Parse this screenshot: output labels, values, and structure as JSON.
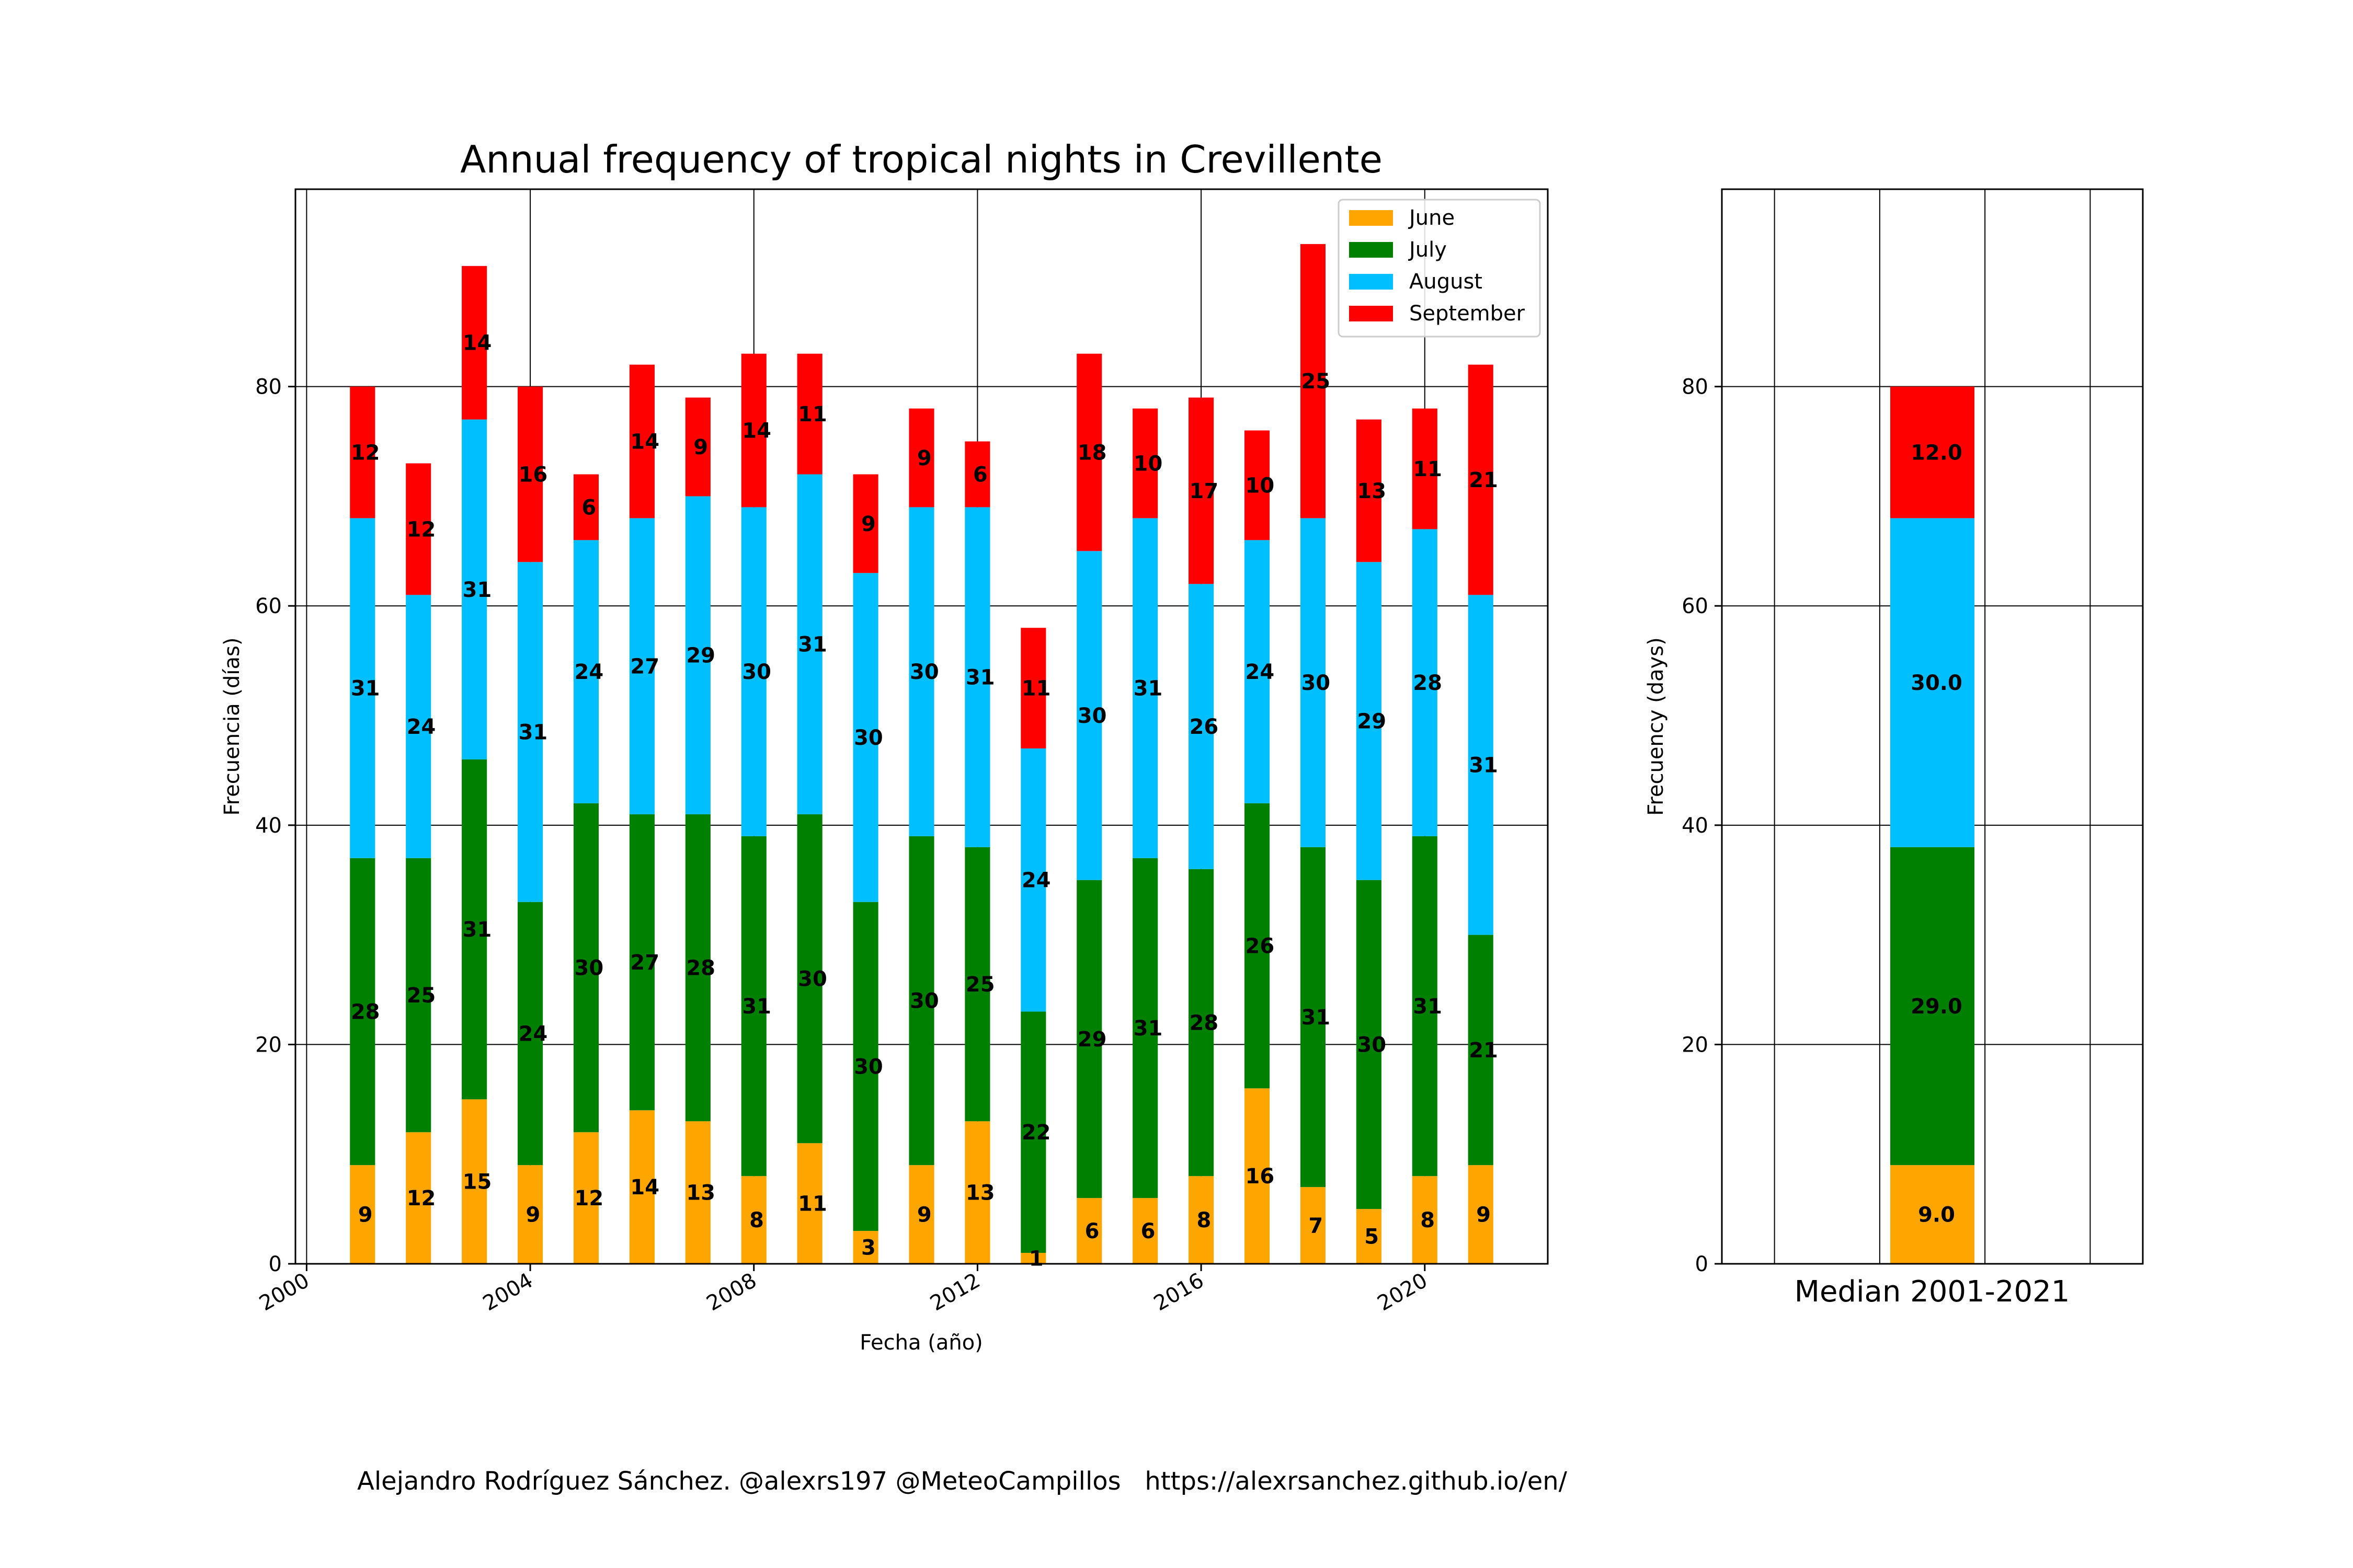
{
  "colors": {
    "June": "#ffa500",
    "July": "#008000",
    "August": "#00bfff",
    "September": "#ff0000",
    "axes": "#000000",
    "grid": "#000000"
  },
  "chart_data": [
    {
      "type": "bar",
      "stacked": true,
      "title": "Annual frequency of tropical nights in Crevillente",
      "xlabel": "Fecha (año)",
      "ylabel": "Frecuencia (días)",
      "x": [
        2001,
        2002,
        2003,
        2004,
        2005,
        2006,
        2007,
        2008,
        2009,
        2010,
        2011,
        2012,
        2013,
        2014,
        2015,
        2016,
        2017,
        2018,
        2019,
        2020,
        2021
      ],
      "xtick_values": [
        2000,
        2004,
        2008,
        2012,
        2016,
        2020
      ],
      "xtick_labels": [
        "2000",
        "2004",
        "2008",
        "2012",
        "2016",
        "2020"
      ],
      "xlim": [
        1999.8,
        2022.2
      ],
      "ylim": [
        0,
        98
      ],
      "yticks": [
        0,
        20,
        40,
        60,
        80
      ],
      "grid": true,
      "legend": {
        "placement": "top-right",
        "entries": [
          "June",
          "July",
          "August",
          "September"
        ]
      },
      "series": [
        {
          "name": "June",
          "values": [
            9,
            12,
            15,
            9,
            12,
            14,
            13,
            8,
            11,
            3,
            9,
            13,
            1,
            6,
            6,
            8,
            16,
            7,
            5,
            8,
            9
          ]
        },
        {
          "name": "July",
          "values": [
            28,
            25,
            31,
            24,
            30,
            27,
            28,
            31,
            30,
            30,
            30,
            25,
            22,
            29,
            31,
            28,
            26,
            31,
            30,
            31,
            21
          ]
        },
        {
          "name": "August",
          "values": [
            31,
            24,
            31,
            31,
            24,
            27,
            29,
            30,
            31,
            30,
            30,
            31,
            24,
            30,
            31,
            26,
            24,
            30,
            29,
            28,
            31
          ]
        },
        {
          "name": "September",
          "values": [
            12,
            12,
            14,
            16,
            6,
            14,
            9,
            14,
            11,
            9,
            9,
            6,
            11,
            18,
            10,
            17,
            10,
            25,
            13,
            11,
            21
          ]
        }
      ]
    },
    {
      "type": "bar",
      "stacked": true,
      "xlabel": "Median 2001-2021",
      "ylabel": "Frecuency (days)",
      "ylim": [
        0,
        98
      ],
      "yticks": [
        0,
        20,
        40,
        60,
        80
      ],
      "grid": true,
      "series": [
        {
          "name": "June",
          "value": 9.0,
          "label": "9.0"
        },
        {
          "name": "July",
          "value": 29.0,
          "label": "29.0"
        },
        {
          "name": "August",
          "value": 30.0,
          "label": "30.0"
        },
        {
          "name": "September",
          "value": 12.0,
          "label": "12.0"
        }
      ]
    }
  ],
  "footer": {
    "credit": "Alejandro Rodríguez Sánchez. @alexrs197 @MeteoCampillos   https://alexrsanchez.github.io/en/"
  }
}
